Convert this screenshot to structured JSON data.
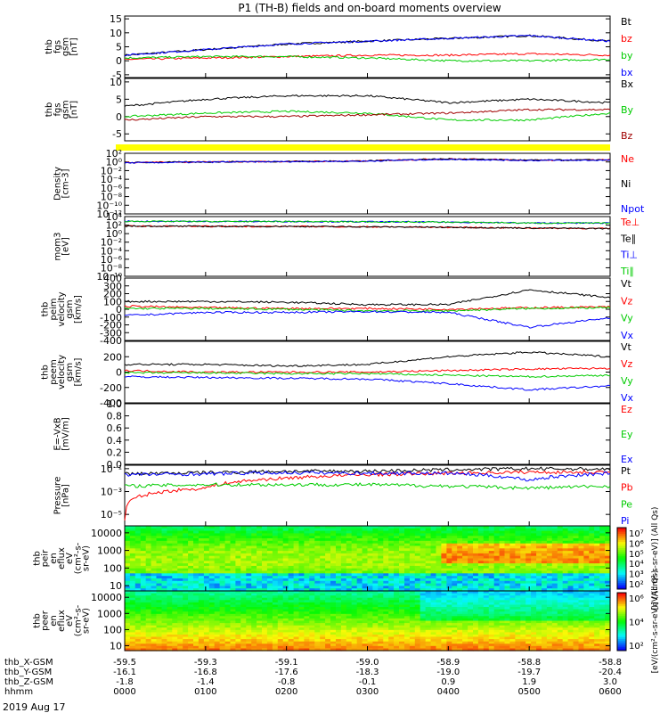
{
  "title": "P1 (TH-B) fields and on-board moments overview",
  "date": "2019 Aug 17",
  "chart_data": [
    {
      "type": "line",
      "ylabel": [
        "thb",
        "fgs",
        "gsm",
        "[nT]"
      ],
      "ytick_values": [
        15,
        10,
        5,
        0,
        -5
      ],
      "ytick_labels": [
        "15",
        "10",
        "5",
        "0",
        "-5"
      ],
      "ylim": [
        -6,
        16
      ],
      "x": [
        0,
        60,
        120,
        180,
        240,
        300,
        360
      ],
      "series": [
        {
          "name": "Bt",
          "color": "#000000",
          "values": [
            2,
            4,
            6,
            7,
            8,
            9,
            7
          ]
        },
        {
          "name": "bz",
          "color": "#ff0000",
          "values": [
            0.5,
            1,
            1.5,
            2,
            2,
            2.5,
            2
          ]
        },
        {
          "name": "by",
          "color": "#00cc00",
          "values": [
            1,
            1.5,
            1.5,
            1,
            0,
            0,
            0.5
          ]
        },
        {
          "name": "bx",
          "color": "#0000ff",
          "values": [
            2,
            4,
            6,
            7,
            8,
            9,
            7
          ]
        }
      ]
    },
    {
      "type": "line",
      "ylabel": [
        "thb",
        "fgs",
        "gsm",
        "[nT]"
      ],
      "ytick_values": [
        10,
        5,
        0,
        -5
      ],
      "ytick_labels": [
        "10",
        "5",
        "0",
        "-5"
      ],
      "ylim": [
        -7,
        11
      ],
      "x": [
        0,
        60,
        120,
        180,
        240,
        300,
        360
      ],
      "series": [
        {
          "name": "Bx",
          "color": "#000000",
          "values": [
            3,
            5,
            6,
            6,
            4,
            5,
            4
          ]
        },
        {
          "name": "By",
          "color": "#00cc00",
          "values": [
            0,
            1,
            1.5,
            1,
            -1,
            -1,
            1
          ]
        },
        {
          "name": "Bz",
          "color": "#a00000",
          "values": [
            -1,
            0,
            0,
            0.5,
            1,
            2,
            2
          ]
        }
      ]
    },
    {
      "type": "line",
      "ylabel": [
        "Density",
        "[cm-3]"
      ],
      "ytick_values": [
        100,
        1,
        0.01,
        0.0001,
        1e-06,
        1e-08,
        1e-10,
        1e-12
      ],
      "ytick_labels": [
        "10²",
        "10⁰",
        "10⁻²",
        "10⁻⁴",
        "10⁻⁶",
        "10⁻⁸",
        "10⁻¹⁰",
        "10⁻¹²"
      ],
      "ylog": true,
      "ylim": [
        1e-12,
        100
      ],
      "x": [
        0,
        60,
        120,
        180,
        240,
        300,
        360
      ],
      "series": [
        {
          "name": "Ne",
          "color": "#ff0000",
          "values": [
            0.7,
            1,
            1.3,
            1.6,
            5,
            2.5,
            3
          ]
        },
        {
          "name": "Ni",
          "color": "#000000",
          "values": [
            0.7,
            1,
            1.3,
            1.6,
            5,
            2.5,
            3
          ]
        },
        {
          "name": "Npot",
          "color": "#0000ff",
          "values": [
            0.6,
            0.9,
            1.2,
            1.5,
            4,
            2.2,
            2.6
          ]
        }
      ]
    },
    {
      "type": "line",
      "ylabel": [
        "mom3",
        "[eV]"
      ],
      "ytick_values": [
        10000,
        100,
        1,
        0.01,
        0.0001,
        1e-06,
        1e-08,
        1e-10
      ],
      "ytick_labels": [
        "10⁴",
        "10²",
        "10⁰",
        "10⁻²",
        "10⁻⁴",
        "10⁻⁶",
        "10⁻⁸",
        "10⁻¹⁰"
      ],
      "ylog": true,
      "ylim": [
        1e-10,
        10000
      ],
      "x": [
        0,
        60,
        120,
        180,
        240,
        300,
        360
      ],
      "series": [
        {
          "name": "Te⊥",
          "color": "#ff0000",
          "values": [
            60,
            50,
            50,
            40,
            30,
            20,
            15
          ]
        },
        {
          "name": "Te∥",
          "color": "#000000",
          "values": [
            60,
            50,
            50,
            40,
            30,
            20,
            15
          ]
        },
        {
          "name": "Ti⊥",
          "color": "#0000ff",
          "values": [
            800,
            700,
            700,
            600,
            500,
            300,
            300
          ]
        },
        {
          "name": "Ti∥",
          "color": "#00cc00",
          "values": [
            800,
            700,
            700,
            600,
            500,
            300,
            300
          ]
        }
      ]
    },
    {
      "type": "line",
      "ylabel": [
        "thb",
        "peim",
        "velocity",
        "gsm",
        "[km/s]"
      ],
      "ytick_values": [
        400,
        300,
        200,
        100,
        0,
        -100,
        -200,
        -300,
        -400
      ],
      "ytick_labels": [
        "400",
        "300",
        "200",
        "100",
        "0",
        "-100",
        "-200",
        "-300",
        "-400"
      ],
      "ylim": [
        -400,
        400
      ],
      "x": [
        0,
        60,
        120,
        180,
        240,
        300,
        360
      ],
      "series": [
        {
          "name": "Vt",
          "color": "#000000",
          "values": [
            100,
            100,
            90,
            60,
            60,
            250,
            150
          ]
        },
        {
          "name": "Vz",
          "color": "#ff0000",
          "values": [
            40,
            20,
            10,
            10,
            0,
            20,
            30
          ]
        },
        {
          "name": "Vy",
          "color": "#00cc00",
          "values": [
            10,
            10,
            0,
            -20,
            -20,
            10,
            20
          ]
        },
        {
          "name": "Vx",
          "color": "#0000ff",
          "values": [
            -80,
            -40,
            -40,
            -30,
            -40,
            -230,
            -110
          ]
        }
      ]
    },
    {
      "type": "line",
      "ylabel": [
        "thb",
        "peem",
        "velocity",
        "gsm",
        "[km/s]"
      ],
      "ytick_values": [
        200,
        0,
        -200,
        -400
      ],
      "ytick_labels": [
        "200",
        "0",
        "-200",
        "-400"
      ],
      "ylim": [
        -400,
        400
      ],
      "x": [
        0,
        60,
        120,
        180,
        240,
        300,
        360
      ],
      "series": [
        {
          "name": "Vt",
          "color": "#000000",
          "values": [
            100,
            100,
            80,
            100,
            200,
            260,
            200
          ]
        },
        {
          "name": "Vz",
          "color": "#ff0000",
          "values": [
            20,
            0,
            0,
            0,
            20,
            40,
            50
          ]
        },
        {
          "name": "Vy",
          "color": "#00cc00",
          "values": [
            -10,
            -10,
            -20,
            -20,
            -40,
            -60,
            -40
          ]
        },
        {
          "name": "Vx",
          "color": "#0000ff",
          "values": [
            -60,
            -70,
            -80,
            -90,
            -150,
            -230,
            -180
          ]
        }
      ]
    },
    {
      "type": "line",
      "ylabel": [
        "E=-VxB",
        "[mV/m]"
      ],
      "ytick_values": [
        1.0,
        0.8,
        0.6,
        0.4,
        0.2,
        0.0
      ],
      "ytick_labels": [
        "1.0",
        "0.8",
        "0.6",
        "0.4",
        "0.2",
        "0.0"
      ],
      "ylim": [
        0,
        1
      ],
      "x": [],
      "series": [
        {
          "name": "Ez",
          "color": "#ff0000",
          "values": []
        },
        {
          "name": "Ey",
          "color": "#00cc00",
          "values": []
        },
        {
          "name": "Ex",
          "color": "#0000ff",
          "values": []
        }
      ]
    },
    {
      "type": "line",
      "ylabel": [
        "Pressure",
        "[nPa]"
      ],
      "ytick_values": [
        0.1,
        0.001,
        1e-05
      ],
      "ytick_labels": [
        "10⁻¹",
        "10⁻³",
        "10⁻⁵"
      ],
      "ylog": true,
      "ylim": [
        1e-06,
        0.2
      ],
      "x": [
        0,
        60,
        120,
        180,
        240,
        300,
        360
      ],
      "series": [
        {
          "name": "Pt",
          "color": "#000000",
          "values": [
            0.035,
            0.045,
            0.06,
            0.06,
            0.08,
            0.1,
            0.09
          ]
        },
        {
          "name": "Pb",
          "color": "#ff0000",
          "values": [
            3e-06,
            0.002,
            0.015,
            0.03,
            0.04,
            0.05,
            0.05
          ]
        },
        {
          "name": "Pe",
          "color": "#00cc00",
          "values": [
            0.003,
            0.004,
            0.004,
            0.004,
            0.003,
            0.002,
            0.003
          ]
        },
        {
          "name": "Pi",
          "color": "#0000ff",
          "values": [
            0.03,
            0.035,
            0.045,
            0.04,
            0.04,
            0.01,
            0.04
          ]
        }
      ]
    },
    {
      "type": "heatmap",
      "ylabel": [
        "thb",
        "peir",
        "en",
        "eflux",
        "eV",
        "(cm²-s-",
        "sr-eV)"
      ],
      "ytick_values": [
        10000,
        1000,
        100,
        10
      ],
      "ytick_labels": [
        "10000",
        "1000",
        "100",
        "10"
      ],
      "ylog": true,
      "ylim": [
        5,
        25000
      ]
    },
    {
      "type": "heatmap",
      "ylabel": [
        "thb",
        "peer",
        "en",
        "eflux",
        "eV",
        "(cm²-s-",
        "sr-eV)"
      ],
      "ytick_values": [
        10000,
        1000,
        100,
        10
      ],
      "ytick_labels": [
        "10000",
        "1000",
        "100",
        "10"
      ],
      "ylog": true,
      "ylim": [
        5,
        25000
      ]
    }
  ],
  "colorbar_top": {
    "labels": [
      "10⁷",
      "10⁶",
      "10⁵",
      "10⁴",
      "10³",
      "10²"
    ],
    "title": "[eV/(cm²-s-sr-eV)] (All Qs)"
  },
  "colorbar_bottom": {
    "labels": [
      "10⁶",
      "10⁴",
      "10²"
    ],
    "title": "[eV/(cm²-s-sr-eV)] (All Qs)"
  },
  "ephemeris": {
    "rows": [
      {
        "label": "thb_X-GSM",
        "values": [
          "-59.5",
          "-59.3",
          "-59.1",
          "-59.0",
          "-58.9",
          "-58.8",
          "-58.8"
        ]
      },
      {
        "label": "thb_Y-GSM",
        "values": [
          "-16.1",
          "-16.8",
          "-17.6",
          "-18.3",
          "-19.0",
          "-19.7",
          "-20.4"
        ]
      },
      {
        "label": "thb_Z-GSM",
        "values": [
          "-1.8",
          "-1.4",
          "-0.8",
          "-0.1",
          "0.9",
          "1.9",
          "3.0"
        ]
      },
      {
        "label": "hhmm",
        "values": [
          "0000",
          "0100",
          "0200",
          "0300",
          "0400",
          "0500",
          "0600"
        ]
      }
    ]
  },
  "colors": {
    "yellow_bar": "#ffff00"
  }
}
